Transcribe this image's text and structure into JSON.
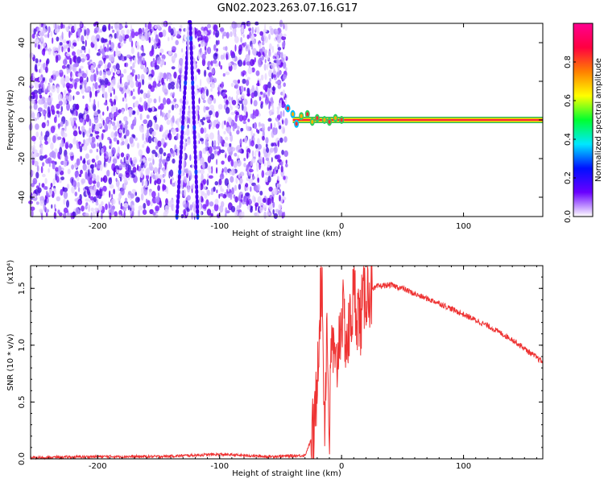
{
  "title": "GN02.2023.263.07.16.G17",
  "chart_data": [
    {
      "type": "heatmap",
      "xlabel": "Height of straight line (km)",
      "ylabel": "Frequency (Hz)",
      "xlim": [
        -255,
        165
      ],
      "ylim": [
        -50,
        50
      ],
      "xticks": [
        -200,
        -100,
        0,
        100
      ],
      "yticks": [
        -40,
        -20,
        0,
        20,
        40
      ],
      "colorbar": {
        "label": "Normalized spectral amplitude",
        "range": [
          0,
          1
        ],
        "ticks": [
          "0.0",
          "0.2",
          "0.4",
          "0.6",
          "0.8"
        ],
        "colors": [
          "#ffffff",
          "#6a00ff",
          "#0010ff",
          "#00e8ff",
          "#00ff30",
          "#ffff00",
          "#ff8000",
          "#ff0040",
          "#ff0090"
        ]
      },
      "features": [
        {
          "name": "noise",
          "x": [
            -255,
            -45
          ],
          "y": [
            -50,
            50
          ],
          "amplitude": 0.1
        },
        {
          "name": "diagonal streak",
          "points": [
            [
              -135,
              -50
            ],
            [
              -125,
              50
            ]
          ]
        },
        {
          "name": "diagonal streak",
          "points": [
            [
              -118,
              -50
            ],
            [
              -124,
              50
            ]
          ]
        },
        {
          "name": "signal",
          "x": [
            -45,
            165
          ],
          "y": 0,
          "amplitude": 0.85
        }
      ]
    },
    {
      "type": "line",
      "xlabel": "Height of straight line (km)",
      "ylabel": "SNR (10 * v/v)",
      "y_multiplier": "(x10⁴)",
      "xlim": [
        -255,
        165
      ],
      "ylim": [
        0,
        1.7
      ],
      "xticks": [
        -200,
        -100,
        0,
        100
      ],
      "yticks": [
        "0.0",
        "0.5",
        "1.0",
        "1.5"
      ],
      "color": "#ee3333",
      "series": [
        {
          "x": [
            -255,
            -200,
            -150,
            -100,
            -60,
            -30,
            -22,
            -18,
            -16,
            -14,
            -12,
            -10,
            -8,
            -5,
            0,
            5,
            10,
            15,
            20,
            25,
            30,
            40,
            50,
            60,
            80,
            100,
            120,
            140,
            165
          ],
          "y": [
            0.01,
            0.02,
            0.02,
            0.04,
            0.02,
            0.03,
            0.25,
            1.3,
            1.6,
            0.3,
            1.2,
            0.2,
            1.1,
            0.7,
            1.3,
            1.0,
            1.45,
            1.2,
            1.5,
            1.48,
            1.52,
            1.53,
            1.5,
            1.45,
            1.37,
            1.27,
            1.17,
            1.05,
            0.85
          ]
        }
      ]
    }
  ]
}
